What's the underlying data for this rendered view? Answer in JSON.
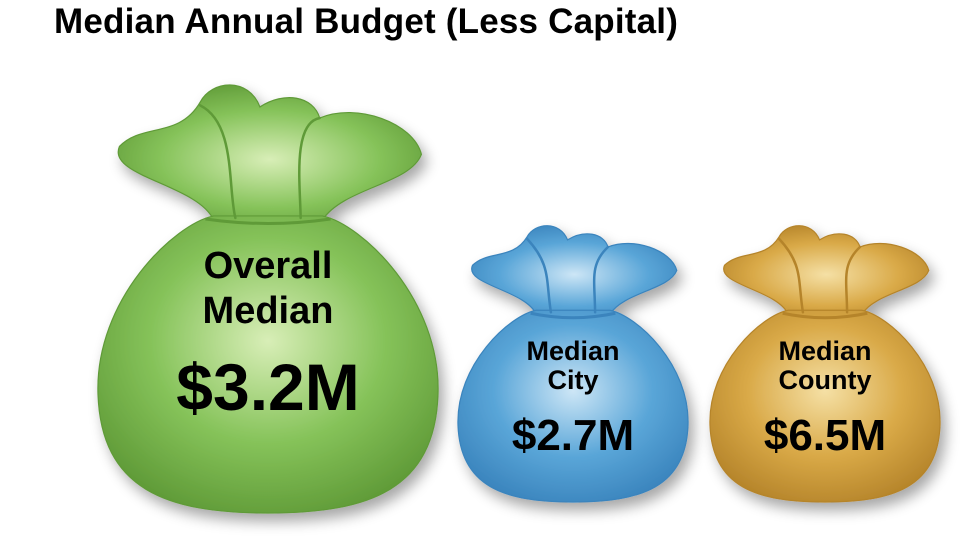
{
  "chart_data": {
    "type": "bar",
    "title": "Median Annual Budget (Less Capital)",
    "categories": [
      "Overall Median",
      "Median City",
      "Median County"
    ],
    "label_lines": [
      [
        "Overall",
        "Median"
      ],
      [
        "Median",
        "City"
      ],
      [
        "Median",
        "County"
      ]
    ],
    "values": [
      3.2,
      2.7,
      6.5
    ],
    "value_labels": [
      "$3.2M",
      "$2.7M",
      "$6.5M"
    ],
    "unit": "M",
    "colors": [
      "#86c35a",
      "#5aa6d8",
      "#d9a947"
    ],
    "dark_colors": [
      "#5f9a37",
      "#3a84bd",
      "#b5842a"
    ],
    "light_colors": [
      "#d8eeb7",
      "#cde6f6",
      "#f5e0a5"
    ]
  }
}
